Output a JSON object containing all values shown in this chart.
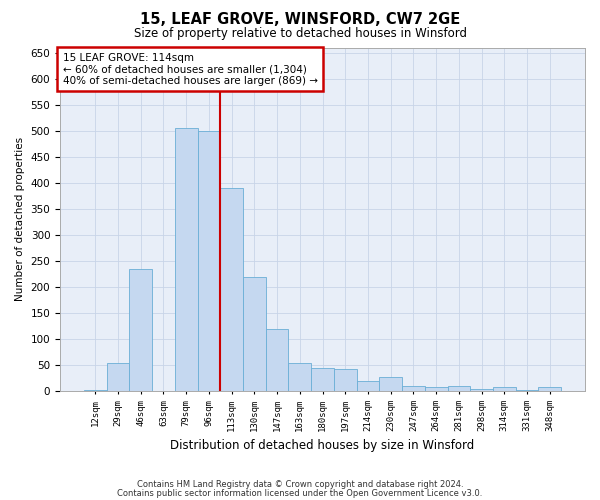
{
  "title": "15, LEAF GROVE, WINSFORD, CW7 2GE",
  "subtitle": "Size of property relative to detached houses in Winsford",
  "xlabel": "Distribution of detached houses by size in Winsford",
  "ylabel": "Number of detached properties",
  "bin_labels": [
    "12sqm",
    "29sqm",
    "46sqm",
    "63sqm",
    "79sqm",
    "96sqm",
    "113sqm",
    "130sqm",
    "147sqm",
    "163sqm",
    "180sqm",
    "197sqm",
    "214sqm",
    "230sqm",
    "247sqm",
    "264sqm",
    "281sqm",
    "298sqm",
    "314sqm",
    "331sqm",
    "348sqm"
  ],
  "bar_heights": [
    2,
    55,
    235,
    0,
    505,
    500,
    390,
    220,
    120,
    55,
    45,
    42,
    20,
    28,
    10,
    8,
    10,
    5,
    8,
    2,
    8
  ],
  "bar_color": "#c5d8f0",
  "bar_edge_color": "#6aaed6",
  "vline_color": "#cc0000",
  "vline_position": 5.5,
  "ylim": [
    0,
    660
  ],
  "yticks": [
    0,
    50,
    100,
    150,
    200,
    250,
    300,
    350,
    400,
    450,
    500,
    550,
    600,
    650
  ],
  "annotation_title": "15 LEAF GROVE: 114sqm",
  "annotation_line1": "← 60% of detached houses are smaller (1,304)",
  "annotation_line2": "40% of semi-detached houses are larger (869) →",
  "annotation_box_color": "#cc0000",
  "footer_line1": "Contains HM Land Registry data © Crown copyright and database right 2024.",
  "footer_line2": "Contains public sector information licensed under the Open Government Licence v3.0.",
  "bg_color": "#ffffff",
  "grid_color": "#c8d4e8"
}
